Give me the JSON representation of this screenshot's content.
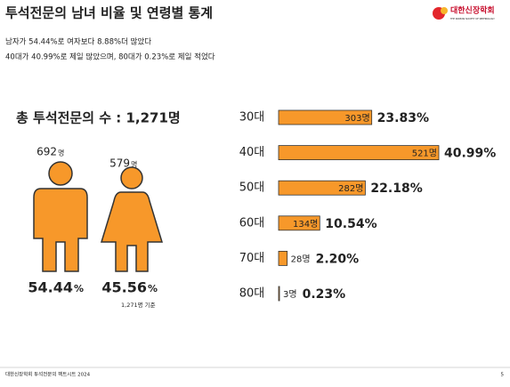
{
  "header": {
    "title": "투석전문의 남녀 비율 및 연령별 통계",
    "logo": "대한신장학회",
    "logo_sub": "THE KOREAN SOCIETY OF NEPHROLOGY"
  },
  "summary": [
    "남자가 54.44%로 여자보다 8.88%더 많았다",
    "40대가 40.99%로 제일 많았으며, 80대가 0.23%로 제일 적었다"
  ],
  "total": "총 투석전문의 수 : 1,271명",
  "gender": {
    "male": {
      "count": 692,
      "percent": 54.44
    },
    "female": {
      "count": 579,
      "percent": 45.56
    },
    "count_unit": "명",
    "percent_unit": "%",
    "basis": "1,271명 기준"
  },
  "chart_data": {
    "type": "hbar",
    "categories": [
      "30대",
      "40대",
      "50대",
      "60대",
      "70대",
      "80대"
    ],
    "values": [
      303,
      521,
      282,
      134,
      28,
      3
    ],
    "value_labels": [
      "303명",
      "521명",
      "282명",
      "134명",
      "28명",
      "3명"
    ],
    "shares": [
      23.83,
      40.99,
      22.18,
      10.54,
      2.2,
      0.23
    ],
    "share_labels": [
      "23.83%",
      "40.99%",
      "22.18%",
      "10.54%",
      "2.20%",
      "0.23%"
    ],
    "color": "#f7982a",
    "xlim": [
      0,
      521
    ]
  },
  "footer": {
    "text": "대한신장학회 투석전문의 팩트시트 2024",
    "page": "5"
  }
}
